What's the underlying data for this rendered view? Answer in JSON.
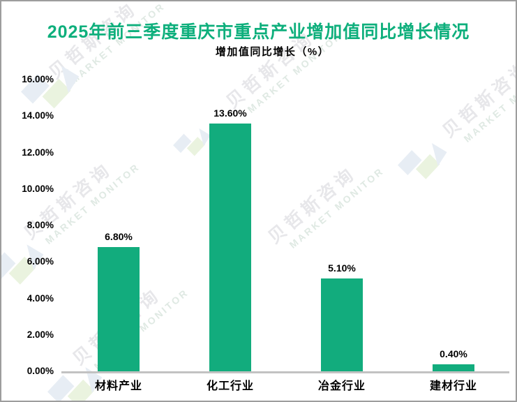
{
  "chart_data": {
    "type": "bar",
    "title": "2025年前三季度重庆市重点产业增加值同比增长情况",
    "subtitle": "增加值同比增长（%）",
    "categories": [
      "材料产业",
      "化工行业",
      "冶金行业",
      "建材行业"
    ],
    "values": [
      6.8,
      13.6,
      5.1,
      0.4
    ],
    "data_labels": [
      "6.80%",
      "13.60%",
      "5.10%",
      "0.40%"
    ],
    "xlabel": "",
    "ylabel": "",
    "ylim": [
      0,
      16
    ],
    "y_tick_step": 2,
    "y_tick_labels": [
      "0.00%",
      "2.00%",
      "4.00%",
      "6.00%",
      "8.00%",
      "10.00%",
      "12.00%",
      "14.00%",
      "16.00%"
    ],
    "grid": false,
    "legend": "none",
    "bar_color": "#12ac7d"
  },
  "watermark": {
    "brand_cn": "贝哲斯咨询",
    "brand_en": "MARKET MONITOR"
  },
  "colors": {
    "title_green": "#0eaf7c",
    "bar_green": "#12ac7d",
    "axis_line": "#c2c2c2",
    "frame_border": "#9d9d9d",
    "watermark_text": "#e7e7ea",
    "watermark_en_text": "#dfe9e3",
    "watermark_logo_blue": "#e7edf4",
    "watermark_logo_green": "#eaf3df"
  }
}
